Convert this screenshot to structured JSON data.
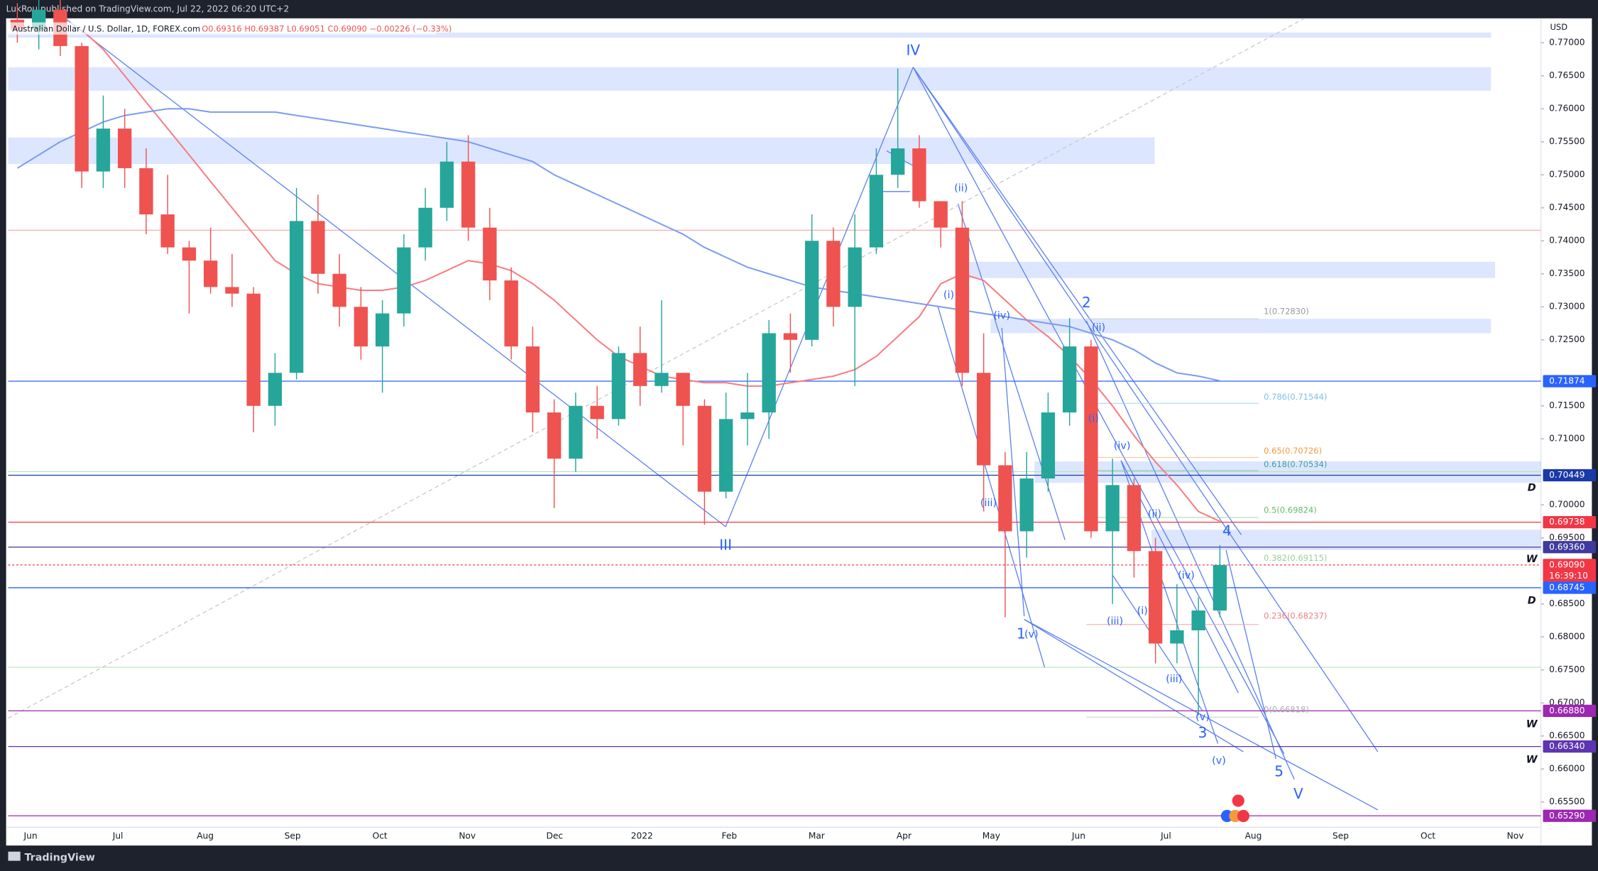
{
  "header": {
    "text": "LukRou published on TradingView.com, Jul 22, 2022 06:20 UTC+2"
  },
  "chart_data": {
    "type": "candlestick",
    "symbol_legend": "Australian Dollar / U.S. Dollar, 1D, FOREX.com",
    "ohlc_legend": "O0.69316 H0.69387 L0.69051 C0.69090 −0.00226 (−0.33%)",
    "currency": "USD",
    "x_labels": [
      "Jun",
      "Jul",
      "Aug",
      "Sep",
      "Oct",
      "Nov",
      "Dec",
      "2022",
      "Feb",
      "Mar",
      "Apr",
      "May",
      "Jun",
      "Jul",
      "Aug",
      "Sep",
      "Oct",
      "Nov"
    ],
    "open": [
      0.7735,
      0.772,
      0.775,
      0.7695,
      0.7505,
      0.757,
      0.751,
      0.744,
      0.739,
      0.737,
      0.733,
      0.732,
      0.715,
      0.72,
      0.743,
      0.735,
      0.73,
      0.724,
      0.729,
      0.739,
      0.745,
      0.752,
      0.742,
      0.734,
      0.724,
      0.714,
      0.707,
      0.715,
      0.713,
      0.723,
      0.718,
      0.72,
      0.715,
      0.702,
      0.713,
      0.714,
      0.726,
      0.725,
      0.74,
      0.73,
      0.739,
      0.75,
      0.754,
      0.746,
      0.742,
      0.72,
      0.706,
      0.696,
      0.704,
      0.714,
      0.724,
      0.696,
      0.703,
      0.693,
      0.679,
      0.681,
      0.684
    ],
    "high": [
      0.776,
      0.778,
      0.777,
      0.77,
      0.762,
      0.76,
      0.754,
      0.75,
      0.74,
      0.742,
      0.738,
      0.733,
      0.723,
      0.748,
      0.747,
      0.738,
      0.733,
      0.731,
      0.741,
      0.748,
      0.755,
      0.756,
      0.745,
      0.736,
      0.727,
      0.716,
      0.717,
      0.718,
      0.724,
      0.727,
      0.731,
      0.72,
      0.716,
      0.717,
      0.72,
      0.728,
      0.729,
      0.744,
      0.742,
      0.744,
      0.754,
      0.7661,
      0.756,
      0.746,
      0.746,
      0.726,
      0.708,
      0.708,
      0.717,
      0.7283,
      0.725,
      0.707,
      0.704,
      0.695,
      0.688,
      0.686,
      0.6939
    ],
    "low": [
      0.77,
      0.769,
      0.768,
      0.748,
      0.748,
      0.748,
      0.741,
      0.738,
      0.729,
      0.732,
      0.73,
      0.711,
      0.712,
      0.719,
      0.732,
      0.727,
      0.722,
      0.717,
      0.727,
      0.737,
      0.743,
      0.74,
      0.731,
      0.722,
      0.711,
      0.6995,
      0.705,
      0.71,
      0.712,
      0.715,
      0.717,
      0.709,
      0.697,
      0.701,
      0.709,
      0.71,
      0.72,
      0.724,
      0.727,
      0.718,
      0.738,
      0.748,
      0.745,
      0.739,
      0.718,
      0.699,
      0.683,
      0.692,
      0.702,
      0.712,
      0.695,
      0.685,
      0.689,
      0.676,
      0.676,
      0.6681,
      0.683
    ],
    "close": [
      0.772,
      0.775,
      0.7695,
      0.7505,
      0.757,
      0.751,
      0.744,
      0.739,
      0.737,
      0.733,
      0.732,
      0.715,
      0.72,
      0.743,
      0.735,
      0.73,
      0.724,
      0.729,
      0.739,
      0.745,
      0.752,
      0.742,
      0.734,
      0.724,
      0.714,
      0.707,
      0.715,
      0.713,
      0.723,
      0.718,
      0.72,
      0.715,
      0.702,
      0.713,
      0.714,
      0.726,
      0.725,
      0.74,
      0.73,
      0.739,
      0.75,
      0.754,
      0.746,
      0.742,
      0.72,
      0.706,
      0.696,
      0.704,
      0.714,
      0.724,
      0.696,
      0.703,
      0.693,
      0.679,
      0.681,
      0.684,
      0.6909
    ],
    "up_color": "#26a69a",
    "down_color": "#ef5350",
    "ylim": [
      0.6484,
      0.7737
    ],
    "yticks": [
      {
        "value": 0.77,
        "label": "0.77000"
      },
      {
        "value": 0.765,
        "label": "0.76500"
      },
      {
        "value": 0.76,
        "label": "0.76000"
      },
      {
        "value": 0.755,
        "label": "0.75500"
      },
      {
        "value": 0.75,
        "label": "0.75000"
      },
      {
        "value": 0.745,
        "label": "0.74500"
      },
      {
        "value": 0.74,
        "label": "0.74000"
      },
      {
        "value": 0.735,
        "label": "0.73500"
      },
      {
        "value": 0.73,
        "label": "0.73000"
      },
      {
        "value": 0.725,
        "label": "0.72500"
      },
      {
        "value": 0.715,
        "label": "0.71500"
      },
      {
        "value": 0.71,
        "label": "0.71000"
      },
      {
        "value": 0.7,
        "label": "0.70000"
      },
      {
        "value": 0.695,
        "label": "0.69500"
      },
      {
        "value": 0.685,
        "label": "0.68500"
      },
      {
        "value": 0.68,
        "label": "0.68000"
      },
      {
        "value": 0.675,
        "label": "0.67500"
      },
      {
        "value": 0.67,
        "label": "0.67000"
      },
      {
        "value": 0.665,
        "label": "0.66500"
      },
      {
        "value": 0.66,
        "label": "0.66000"
      },
      {
        "value": 0.655,
        "label": "0.65500"
      }
    ],
    "moving_averages": [
      {
        "color": "#f77c80",
        "values": [
          null,
          null,
          null,
          0.772,
          0.769,
          0.765,
          0.761,
          0.757,
          0.753,
          0.749,
          0.745,
          0.741,
          0.737,
          0.735,
          0.7335,
          0.733,
          0.7325,
          0.7325,
          0.733,
          0.734,
          0.7355,
          0.737,
          0.7365,
          0.7355,
          0.7335,
          0.731,
          0.728,
          0.725,
          0.7225,
          0.721,
          0.7195,
          0.719,
          0.7185,
          0.7185,
          0.718,
          0.718,
          0.7185,
          0.719,
          0.7195,
          0.7205,
          0.7225,
          0.7255,
          0.7285,
          0.7335,
          0.735,
          0.734,
          0.731,
          0.728,
          0.7255,
          0.7225,
          0.719,
          0.715,
          0.7105,
          0.7065,
          0.703,
          0.699,
          0.6975
        ]
      },
      {
        "color": "#7b9cf0",
        "values": [
          0.751,
          0.753,
          0.755,
          0.7565,
          0.758,
          0.759,
          0.7595,
          0.76,
          0.76,
          0.7595,
          0.7595,
          0.7595,
          0.7595,
          0.759,
          0.7585,
          0.758,
          0.7575,
          0.757,
          0.7565,
          0.756,
          0.7555,
          0.755,
          0.754,
          0.753,
          0.752,
          0.75,
          0.7485,
          0.747,
          0.7455,
          0.744,
          0.7425,
          0.741,
          0.739,
          0.7375,
          0.736,
          0.735,
          0.734,
          0.733,
          0.7325,
          0.732,
          0.7315,
          0.731,
          0.7305,
          0.73,
          0.7295,
          0.729,
          0.7285,
          0.728,
          0.7275,
          0.727,
          0.726,
          0.725,
          0.7235,
          0.7215,
          0.72,
          0.7195,
          0.7188
        ]
      }
    ],
    "price_tags": [
      {
        "value": 0.71874,
        "label": "0.71874",
        "color": "#2962ff"
      },
      {
        "value": 0.70449,
        "label": "0.70449",
        "color": "#1a3aa8"
      },
      {
        "value": 0.69738,
        "label": "0.69738",
        "color": "#f23645"
      },
      {
        "value": 0.6936,
        "label": "0.69360",
        "color": "#3f3a9e"
      },
      {
        "value": 0.6909,
        "label": "0.69090",
        "color": "#f23645"
      },
      {
        "value": 0.68745,
        "label": "0.68745",
        "color": "#2962ff"
      },
      {
        "value": 0.6688,
        "label": "0.66880",
        "color": "#9c27b0"
      },
      {
        "value": 0.6634,
        "label": "0.66340",
        "color": "#5e35b1"
      },
      {
        "value": 0.6529,
        "label": "0.65290",
        "color": "#9c27b0"
      }
    ],
    "countdown": "16:39:10",
    "wave_labels": [
      "IV",
      "III",
      "(ii)",
      "(i)",
      "(iv)",
      "(iii)",
      "1",
      "(v)",
      "2",
      "(ii)",
      "(i)",
      "(iv)",
      "(iii)",
      "(i)",
      "(ii)",
      "(iv)",
      "(iii)",
      "(v)",
      "3",
      "(v)",
      "4",
      "5",
      "V"
    ],
    "fib_labels": [
      "1(0.72830)",
      "0.786(0.71544)",
      "0.65(0.70726)",
      "0.618(0.70534)",
      "0.5(0.69824)",
      "0.382(0.69115)",
      "0.236(0.68237)",
      "0(0.66818)"
    ],
    "side_letters": [
      "D",
      "W",
      "D",
      "W",
      "W"
    ]
  },
  "footer": {
    "brand": "TradingView"
  }
}
